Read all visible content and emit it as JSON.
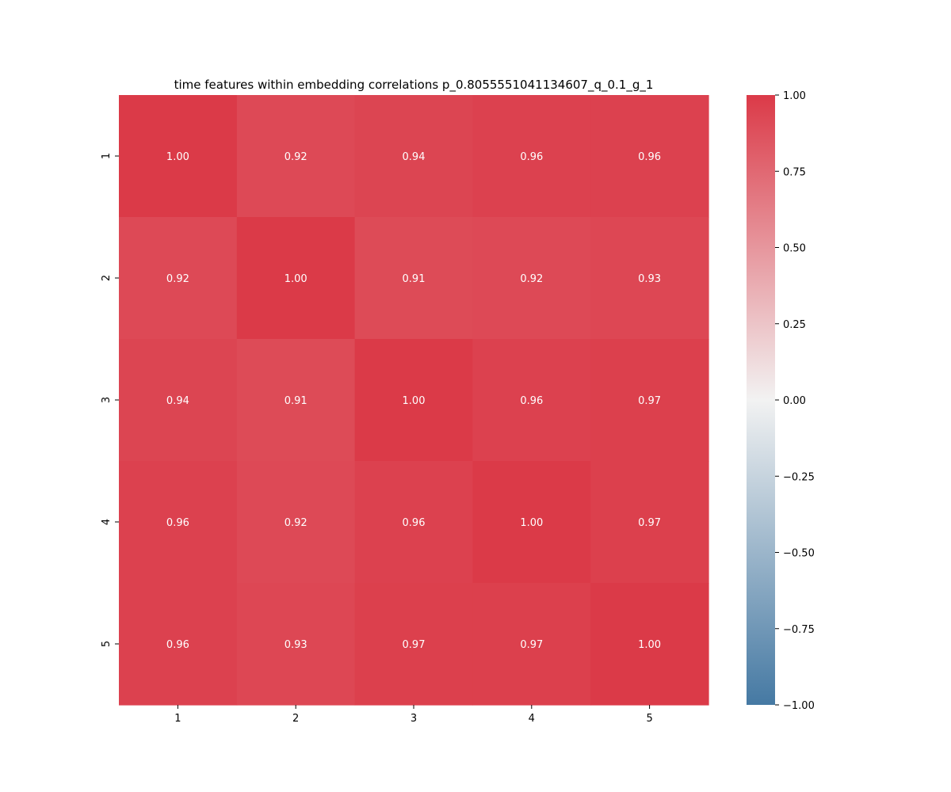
{
  "chart_data": {
    "type": "heatmap",
    "title": "time features within embedding correlations p_0.8055551041134607_q_0.1_g_1",
    "x_categories": [
      "1",
      "2",
      "3",
      "4",
      "5"
    ],
    "y_categories": [
      "1",
      "2",
      "3",
      "4",
      "5"
    ],
    "values": [
      [
        1.0,
        0.92,
        0.94,
        0.96,
        0.96
      ],
      [
        0.92,
        1.0,
        0.91,
        0.92,
        0.93
      ],
      [
        0.94,
        0.91,
        1.0,
        0.96,
        0.97
      ],
      [
        0.96,
        0.92,
        0.96,
        1.0,
        0.97
      ],
      [
        0.96,
        0.93,
        0.97,
        0.97,
        1.0
      ]
    ],
    "value_labels": [
      [
        "1.00",
        "0.92",
        "0.94",
        "0.96",
        "0.96"
      ],
      [
        "0.92",
        "1.00",
        "0.91",
        "0.92",
        "0.93"
      ],
      [
        "0.94",
        "0.91",
        "1.00",
        "0.96",
        "0.97"
      ],
      [
        "0.96",
        "0.92",
        "0.96",
        "1.00",
        "0.97"
      ],
      [
        "0.96",
        "0.93",
        "0.97",
        "0.97",
        "1.00"
      ]
    ],
    "colorbar": {
      "range": [
        -1.0,
        1.0
      ],
      "tick_values": [
        1.0,
        0.75,
        0.5,
        0.25,
        0.0,
        -0.25,
        -0.5,
        -0.75,
        -1.0
      ],
      "tick_labels": [
        "1.00",
        "0.75",
        "0.50",
        "0.25",
        "0.00",
        "−0.25",
        "−0.50",
        "−0.75",
        "−1.00"
      ],
      "colors": {
        "low": "#4579a3",
        "mid": "#f2f2f2",
        "high": "#db3a48"
      }
    },
    "annotation_color": "#ffffff",
    "grid": false
  }
}
